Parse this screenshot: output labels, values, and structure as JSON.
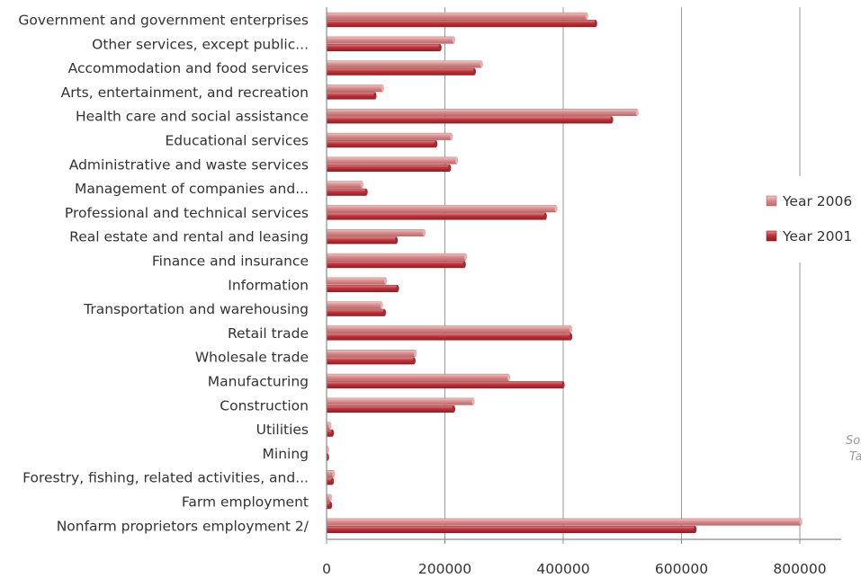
{
  "chart_data": {
    "type": "bar",
    "orientation": "horizontal",
    "categories": [
      "Government and government enterprises",
      "Other services, except public...",
      "Accommodation and food services",
      "Arts, entertainment, and recreation",
      "Health care and social assistance",
      "Educational services",
      "Administrative and waste services",
      "Management of companies and...",
      "Professional and technical services",
      "Real estate and rental and leasing",
      "Finance and insurance",
      "Information",
      "Transportation and warehousing",
      "Retail trade",
      "Wholesale trade",
      "Manufacturing",
      "Construction",
      "Utilities",
      "Mining",
      "Forestry, fishing, related activities, and...",
      "Farm employment",
      "Nonfarm proprietors employment 2/"
    ],
    "series": [
      {
        "name": "Year 2006",
        "color": "#d98c8c",
        "values": [
          440000,
          215000,
          262000,
          95000,
          525000,
          211000,
          220000,
          60000,
          388000,
          165000,
          235000,
          100000,
          93000,
          413000,
          150000,
          308000,
          248000,
          6000,
          2000,
          12000,
          7000,
          802000
        ]
      },
      {
        "name": "Year 2001",
        "color": "#c0333a",
        "values": [
          455000,
          192000,
          250000,
          82000,
          482000,
          185000,
          208000,
          67000,
          370000,
          118000,
          233000,
          120000,
          98000,
          413000,
          148000,
          400000,
          215000,
          10000,
          1000,
          10000,
          7000,
          623000
        ]
      }
    ],
    "x_ticks": [
      "0",
      "200000",
      "400000",
      "600000",
      "800000"
    ],
    "xlim": [
      0,
      900000
    ],
    "grid": "vertical",
    "legend_position": "right",
    "side_note": [
      "So",
      "Ta"
    ]
  }
}
